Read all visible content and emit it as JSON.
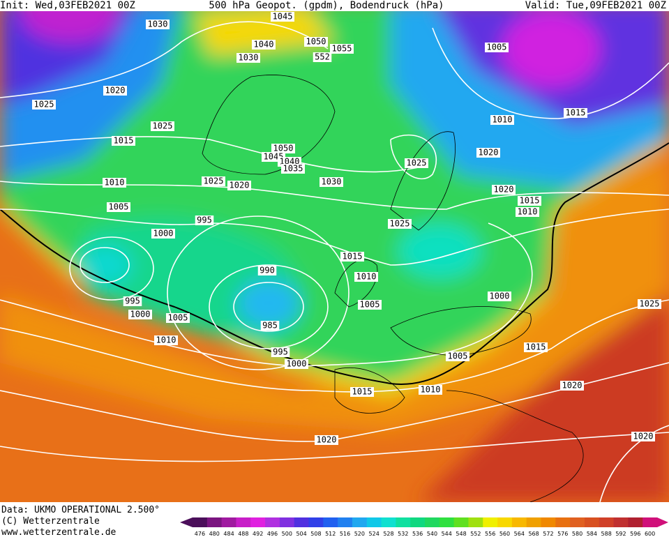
{
  "header": {
    "init": "Init: Wed,03FEB2021 00Z",
    "title": "500 hPa Geopot. (gpdm), Bodendruck (hPa)",
    "valid": "Valid: Tue,09FEB2021 00Z"
  },
  "isobar_labels": [
    1045,
    1030,
    1040,
    1050,
    1055,
    1030,
    552,
    1005,
    1020,
    1025,
    1010,
    1015,
    1025,
    1015,
    1050,
    1045,
    1040,
    1035,
    1020,
    1025,
    1010,
    1025,
    1020,
    1030,
    1020,
    1015,
    1010,
    1005,
    995,
    1025,
    1000,
    1015,
    990,
    1010,
    1000,
    1025,
    995,
    1005,
    1000,
    1005,
    985,
    1010,
    1015,
    995,
    1005,
    1000,
    1010,
    1015,
    1020,
    1020,
    1020
  ],
  "footer": {
    "source": "Data: UKMO OPERATIONAL 2.500°",
    "copyright": "(C) Wetterzentrale",
    "url": "www.wetterzentrale.de"
  },
  "legend": {
    "values": [
      476,
      480,
      484,
      488,
      492,
      496,
      500,
      504,
      508,
      512,
      516,
      520,
      524,
      528,
      532,
      536,
      540,
      544,
      548,
      552,
      556,
      560,
      564,
      568,
      572,
      576,
      580,
      584,
      588,
      592,
      596,
      600
    ],
    "colors": [
      "#4b0f5a",
      "#7b1580",
      "#a01aa0",
      "#c81ec8",
      "#e020e0",
      "#b030e0",
      "#8030e0",
      "#5030e0",
      "#3040e8",
      "#2060f0",
      "#2080f0",
      "#20a8f0",
      "#10c8e8",
      "#10e0d0",
      "#10e0a0",
      "#10d880",
      "#20d860",
      "#30e040",
      "#60e020",
      "#a0e010",
      "#f0f000",
      "#f8d800",
      "#f8b800",
      "#f0a000",
      "#f08800",
      "#e87010",
      "#e06020",
      "#d85020",
      "#d04028",
      "#c03030",
      "#b02030",
      "#d0107a"
    ]
  }
}
